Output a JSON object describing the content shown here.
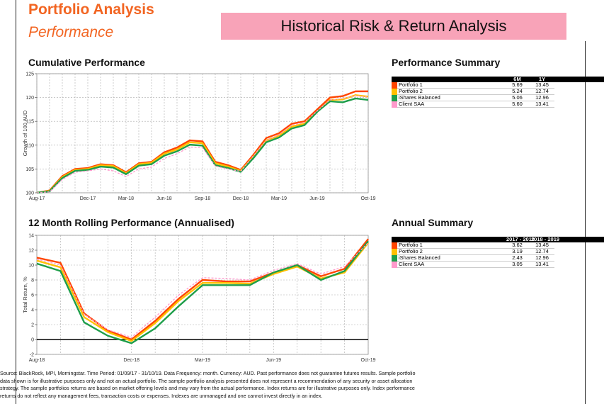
{
  "header": {
    "title": "Portfolio Analysis",
    "subtitle": "Performance",
    "banner": "Historical Risk & Return Analysis"
  },
  "chart_data": [
    {
      "type": "line",
      "title": "Cumulative Performance",
      "y_label": "Growth of 100 AUD",
      "categories": [
        "Aug-17",
        null,
        null,
        null,
        "Dec-17",
        null,
        null,
        "Mar-18",
        null,
        null,
        "Jun-18",
        null,
        null,
        "Sep-18",
        null,
        null,
        "Dec-18",
        null,
        null,
        "Mar-19",
        null,
        null,
        "Jun-19",
        null,
        null,
        null,
        "Oct-19"
      ],
      "series": [
        {
          "name": "Portfolio 1",
          "color": "#ff4500",
          "values": [
            100,
            100.5,
            103.5,
            105,
            105.2,
            106,
            105.8,
            104.3,
            106.2,
            106.5,
            108.5,
            109.5,
            111,
            110.8,
            106.5,
            105.8,
            104.8,
            108,
            111.5,
            112.5,
            114.5,
            115,
            117.5,
            120,
            120.3,
            121.3,
            121.3
          ]
        },
        {
          "name": "Portfolio 2",
          "color": "#ffc000",
          "values": [
            100,
            100.4,
            103.3,
            104.8,
            105,
            105.8,
            105.6,
            104.1,
            106,
            106.3,
            108.2,
            109.1,
            110.6,
            110.4,
            106.2,
            105.5,
            104.6,
            107.6,
            111,
            112,
            113.9,
            114.5,
            117,
            119.5,
            119.6,
            120.5,
            120.2
          ]
        },
        {
          "name": "iShares Balanced",
          "color": "#1e9e4a",
          "values": [
            100,
            100.3,
            103.1,
            104.6,
            104.8,
            105.5,
            105.3,
            103.9,
            105.7,
            106,
            107.8,
            108.7,
            110.1,
            109.9,
            105.8,
            105.2,
            104.4,
            107.3,
            110.6,
            111.6,
            113.5,
            114.2,
            117,
            119.2,
            119,
            119.8,
            119.5
          ]
        },
        {
          "name": "Client SAA",
          "color": "#ff99cc",
          "dashed": true,
          "values": [
            100,
            100.2,
            102.8,
            104.3,
            104.6,
            105,
            104.6,
            103.4,
            105,
            105.4,
            107.2,
            108.2,
            109.6,
            109.5,
            105.6,
            105,
            104.5,
            107.8,
            111,
            112.2,
            114.2,
            114.8,
            117.2,
            119.5,
            119.8,
            120.4,
            120.1
          ]
        }
      ],
      "ylim": [
        100,
        125
      ],
      "yticks": [
        100,
        105,
        110,
        115,
        120,
        125
      ],
      "grid": true
    },
    {
      "type": "line",
      "title": "12 Month Rolling Performance (Annualised)",
      "y_label": "Total Return, %",
      "categories": [
        "Aug-18",
        null,
        null,
        null,
        "Dec-18",
        null,
        null,
        "Mar-19",
        null,
        null,
        "Jun-19",
        null,
        null,
        null,
        "Oct-19"
      ],
      "series": [
        {
          "name": "Portfolio 1",
          "color": "#ff4500",
          "values": [
            11,
            10.3,
            3.5,
            1.2,
            0,
            2.5,
            5.5,
            8,
            7.8,
            7.8,
            9,
            10,
            8.5,
            9.5,
            13.5
          ]
        },
        {
          "name": "Portfolio 2",
          "color": "#ffc000",
          "values": [
            10.6,
            9.7,
            3,
            1,
            -0.2,
            2.2,
            5.2,
            7.6,
            7.6,
            7.5,
            8.8,
            9.8,
            8.2,
            9,
            13
          ]
        },
        {
          "name": "iShares Balanced",
          "color": "#1e9e4a",
          "values": [
            10.2,
            9.2,
            2.3,
            0.5,
            -0.5,
            1.5,
            4.5,
            7.3,
            7.3,
            7.3,
            9,
            10,
            8,
            9.2,
            13.2
          ]
        },
        {
          "name": "Client SAA",
          "color": "#ff99cc",
          "dashed": true,
          "values": [
            10.8,
            10,
            3.4,
            1.3,
            0.3,
            3,
            6,
            8.3,
            8.2,
            8,
            9.3,
            10.2,
            8.8,
            9.8,
            13
          ]
        }
      ],
      "ylim": [
        -2,
        14
      ],
      "yticks": [
        -2,
        0,
        2,
        4,
        6,
        8,
        10,
        12,
        14
      ],
      "grid": true
    }
  ],
  "tables": [
    {
      "title": "Performance Summary",
      "columns": [
        "6M",
        "1Y"
      ],
      "rows": [
        {
          "name": "Portfolio 1",
          "color": "#ff4500",
          "cells": [
            "5.69",
            "13.45"
          ]
        },
        {
          "name": "Portfolio 2",
          "color": "#ffc000",
          "cells": [
            "5.24",
            "12.74"
          ]
        },
        {
          "name": "iShares Balanced",
          "color": "#1e9e4a",
          "cells": [
            "5.06",
            "12.96"
          ]
        },
        {
          "name": "Client SAA",
          "color": "#ff99cc",
          "cells": [
            "5.60",
            "13.41"
          ]
        }
      ]
    },
    {
      "title": "Annual Summary",
      "columns": [
        "2017 - 2018",
        "2018 - 2019"
      ],
      "rows": [
        {
          "name": "Portfolio 1",
          "color": "#ff4500",
          "cells": [
            "3.62",
            "13.45"
          ]
        },
        {
          "name": "Portfolio 2",
          "color": "#ffc000",
          "cells": [
            "3.19",
            "12.74"
          ]
        },
        {
          "name": "iShares Balanced",
          "color": "#1e9e4a",
          "cells": [
            "2.43",
            "12.96"
          ]
        },
        {
          "name": "Client SAA",
          "color": "#ff99cc",
          "cells": [
            "3.05",
            "13.41"
          ]
        }
      ]
    }
  ],
  "footer": [
    "Source: BlackRock, MPI, Morningstar. Time Period: 01/09/17 - 31/10/19. Data Frequency: month. Currency: AUD. Past performance does not guarantee futures results. Sample portfolio",
    "data shown is for illustrative purposes only and not an actual portfolio. The sample portfolio analysis presented does not represent a recommendation of any security or asset allocation",
    "strategy. The sample portfolios returns are based on market offering levels and may vary from the actual performance. Index returns are for illustrative purposes only. Index performance",
    "returns do not reflect any management fees, transaction costs or expenses. Indexes are unmanaged and one cannot invest directly in an index."
  ]
}
